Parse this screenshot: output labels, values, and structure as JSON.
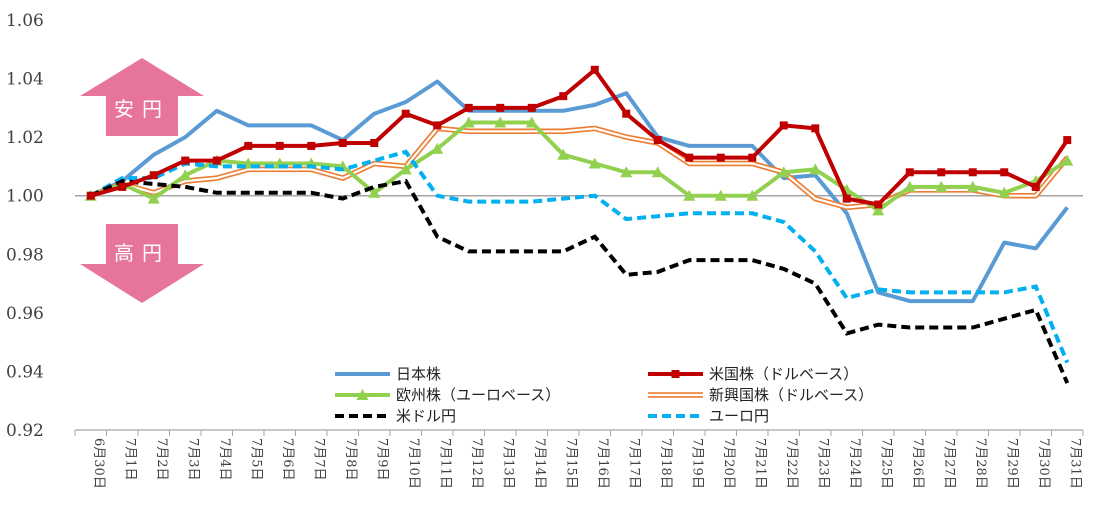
{
  "chart_data": {
    "type": "line",
    "title": "",
    "xlabel": "",
    "ylabel": "",
    "ylim": [
      0.92,
      1.06
    ],
    "yticks": [
      "0.92",
      "0.94",
      "0.96",
      "0.98",
      "1.00",
      "1.02",
      "1.04",
      "1.06"
    ],
    "grid": false,
    "baseline": 1.0,
    "legend_position": "bottom-center",
    "categories": [
      "6月30日",
      "7月1日",
      "7月2日",
      "7月3日",
      "7月4日",
      "7月5日",
      "7月6日",
      "7月7日",
      "7月8日",
      "7月9日",
      "7月10日",
      "7月11日",
      "7月12日",
      "7月13日",
      "7月14日",
      "7月15日",
      "7月16日",
      "7月17日",
      "7月18日",
      "7月19日",
      "7月20日",
      "7月21日",
      "7月22日",
      "7月23日",
      "7月24日",
      "7月25日",
      "7月26日",
      "7月27日",
      "7月28日",
      "7月29日",
      "7月30日",
      "7月31日"
    ],
    "annotations": {
      "up_label": "安円",
      "down_label": "高円",
      "arrow_color": "#e7759a"
    },
    "series": [
      {
        "name": "日本株",
        "color": "#5b9bd5",
        "style": "solid-thick",
        "values": [
          1.0,
          1.005,
          1.014,
          1.02,
          1.029,
          1.024,
          1.024,
          1.024,
          1.019,
          1.028,
          1.032,
          1.039,
          1.029,
          1.029,
          1.029,
          1.029,
          1.031,
          1.035,
          1.02,
          1.017,
          1.017,
          1.017,
          1.006,
          1.007,
          0.994,
          0.967,
          0.964,
          0.964,
          0.964,
          0.984,
          0.982,
          0.996
        ]
      },
      {
        "name": "米国株（ドルベース）",
        "color": "#c00000",
        "style": "square-markers",
        "values": [
          1.0,
          1.003,
          1.007,
          1.012,
          1.012,
          1.017,
          1.017,
          1.017,
          1.018,
          1.018,
          1.028,
          1.024,
          1.03,
          1.03,
          1.03,
          1.034,
          1.043,
          1.028,
          1.019,
          1.013,
          1.013,
          1.013,
          1.024,
          1.023,
          0.999,
          0.997,
          1.008,
          1.008,
          1.008,
          1.008,
          1.003,
          1.019
        ]
      },
      {
        "name": "欧州株（ユーロベース）",
        "color": "#92d050",
        "style": "triangle-markers",
        "values": [
          1.0,
          1.004,
          0.999,
          1.007,
          1.012,
          1.011,
          1.011,
          1.011,
          1.01,
          1.001,
          1.009,
          1.016,
          1.025,
          1.025,
          1.025,
          1.014,
          1.011,
          1.008,
          1.008,
          1.0,
          1.0,
          1.0,
          1.008,
          1.009,
          1.002,
          0.995,
          1.003,
          1.003,
          1.003,
          1.001,
          1.005,
          1.012
        ]
      },
      {
        "name": "新興国株（ドルベース）",
        "color": "#ed7d31",
        "style": "double-line",
        "values": [
          1.0,
          1.004,
          1.001,
          1.005,
          1.006,
          1.009,
          1.009,
          1.009,
          1.006,
          1.011,
          1.01,
          1.023,
          1.022,
          1.022,
          1.022,
          1.022,
          1.023,
          1.02,
          1.018,
          1.011,
          1.011,
          1.011,
          1.008,
          0.999,
          0.996,
          0.997,
          1.002,
          1.002,
          1.002,
          1.0,
          1.0,
          1.013
        ]
      },
      {
        "name": "米ドル円",
        "color": "#000000",
        "style": "dashed-black",
        "values": [
          1.0,
          1.005,
          1.004,
          1.003,
          1.001,
          1.001,
          1.001,
          1.001,
          0.999,
          1.003,
          1.005,
          0.986,
          0.981,
          0.981,
          0.981,
          0.981,
          0.986,
          0.973,
          0.974,
          0.978,
          0.978,
          0.978,
          0.975,
          0.97,
          0.953,
          0.956,
          0.955,
          0.955,
          0.955,
          0.958,
          0.961,
          0.936
        ]
      },
      {
        "name": "ユーロ円",
        "color": "#00b0f0",
        "style": "dashed-blue",
        "values": [
          1.0,
          1.006,
          1.006,
          1.011,
          1.01,
          1.01,
          1.01,
          1.01,
          1.009,
          1.012,
          1.015,
          1.0,
          0.998,
          0.998,
          0.998,
          0.999,
          1.0,
          0.992,
          0.993,
          0.994,
          0.994,
          0.994,
          0.991,
          0.981,
          0.965,
          0.968,
          0.967,
          0.967,
          0.967,
          0.967,
          0.969,
          0.943
        ]
      }
    ]
  }
}
